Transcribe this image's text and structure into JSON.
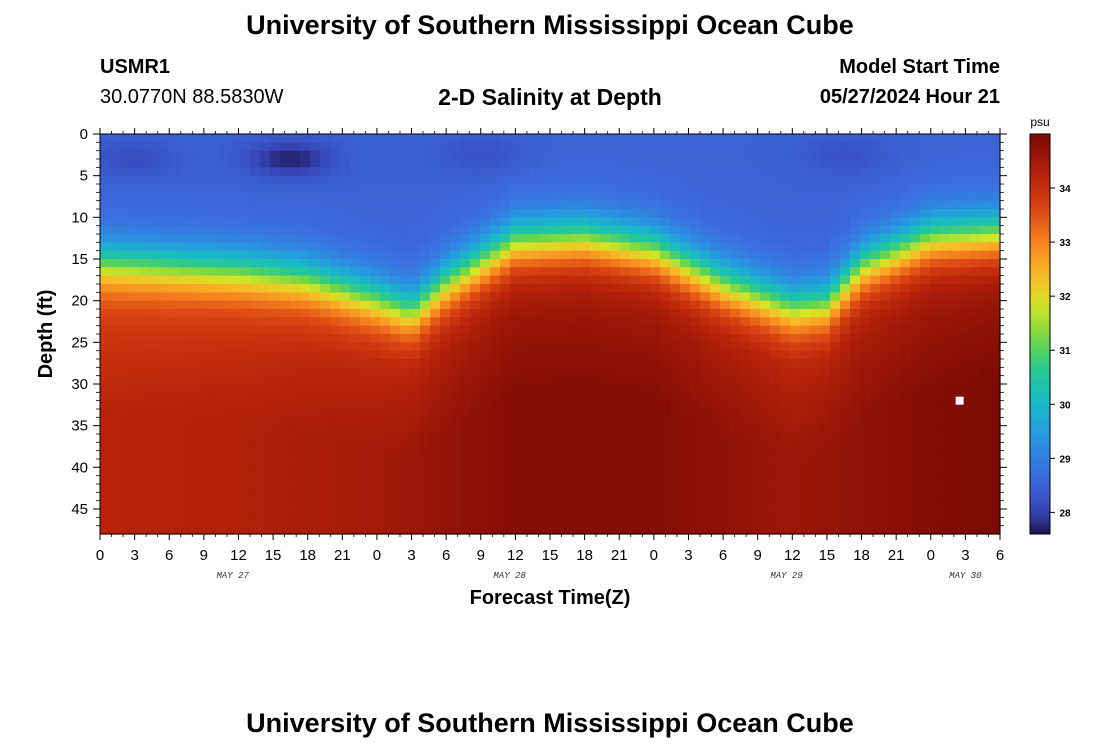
{
  "header": {
    "title": "University of Southern Mississippi Ocean Cube",
    "station": "USMR1",
    "coords": "30.0770N  88.5830W",
    "subtitle": "2-D Salinity at Depth",
    "model_label": "Model Start Time",
    "model_time": "05/27/2024 Hour 21"
  },
  "footer": {
    "title": "University of Southern Mississippi Ocean Cube"
  },
  "chart_data": {
    "type": "heatmap",
    "title": "2-D Salinity at Depth",
    "xlabel": "Forecast Time(Z)",
    "ylabel": "Depth (ft)",
    "x_unit": "forecast hour since 05/27/2024 00Z",
    "xlim": [
      0,
      78
    ],
    "ylim": [
      48,
      0
    ],
    "x_tick_labels": [
      "0",
      "3",
      "6",
      "9",
      "12",
      "15",
      "18",
      "21",
      "0",
      "3",
      "6",
      "9",
      "12",
      "15",
      "18",
      "21",
      "0",
      "3",
      "6",
      "9",
      "12",
      "15",
      "18",
      "21",
      "0",
      "3",
      "6"
    ],
    "y_ticks": [
      0,
      5,
      10,
      15,
      20,
      25,
      30,
      35,
      40,
      45
    ],
    "date_labels": [
      {
        "text": "MAY 27",
        "hour": 11.5
      },
      {
        "text": "MAY 28",
        "hour": 35.5
      },
      {
        "text": "MAY 29",
        "hour": 59.5
      },
      {
        "text": "MAY 30",
        "hour": 75
      }
    ],
    "colorbar": {
      "unit": "psu",
      "range": [
        27.6,
        35.0
      ],
      "ticks": [
        28,
        29,
        30,
        31,
        32,
        33,
        34
      ]
    },
    "halocline_depth_ft": {
      "hours": [
        0,
        6,
        12,
        18,
        24,
        27,
        30,
        36,
        42,
        48,
        54,
        60,
        63,
        66,
        72,
        78
      ],
      "values": [
        15.5,
        16.0,
        16.5,
        17.5,
        20.0,
        21.5,
        18.0,
        13.0,
        12.5,
        14.0,
        18.0,
        21.0,
        20.5,
        16.0,
        12.5,
        12.0
      ]
    },
    "surface_salinity_psu": 28.5,
    "deep_salinity_psu": {
      "hours": [
        0,
        12,
        24,
        36,
        48,
        60,
        72,
        78
      ],
      "values": [
        34.2,
        34.3,
        34.5,
        34.9,
        34.9,
        34.6,
        34.9,
        35.0
      ]
    },
    "low_salinity_patches": [
      {
        "hour": 16.5,
        "depth_ft": 3.0,
        "salinity_psu": 27.7
      },
      {
        "hour": 3.0,
        "depth_ft": 3.0,
        "salinity_psu": 28.1
      },
      {
        "hour": 33.0,
        "depth_ft": 2.5,
        "salinity_psu": 28.2
      },
      {
        "hour": 64.5,
        "depth_ft": 2.5,
        "salinity_psu": 28.2
      }
    ],
    "marker": {
      "hour": 74.5,
      "depth_ft": 32
    }
  }
}
